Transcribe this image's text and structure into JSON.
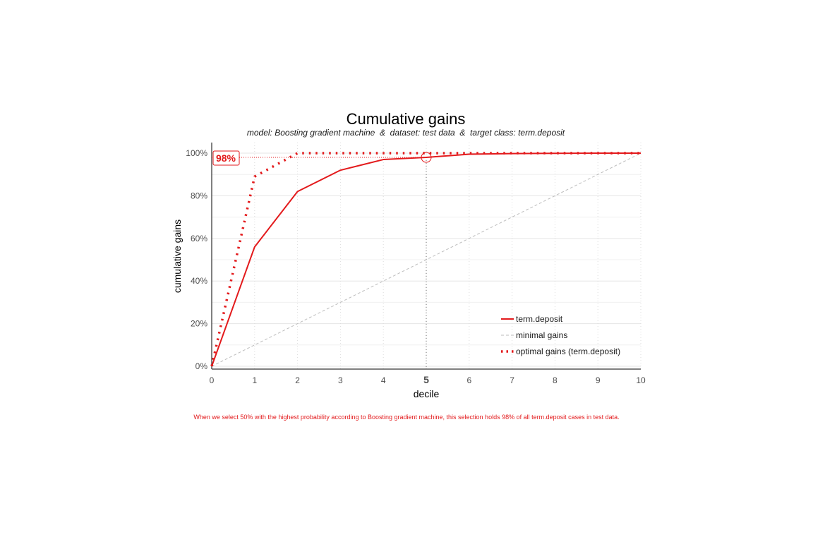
{
  "chart_data": {
    "type": "line",
    "title": "Cumulative gains",
    "subtitle": "model: Boosting gradient machine  &  dataset: test data  &  target class: term.deposit",
    "xlabel": "decile",
    "ylabel": "cumulative gains",
    "xlim": [
      0,
      10
    ],
    "ylim": [
      0,
      1
    ],
    "x_ticks": [
      "0",
      "1",
      "2",
      "3",
      "4",
      "5",
      "6",
      "7",
      "8",
      "9",
      "10"
    ],
    "y_ticks": [
      "0%",
      "20%",
      "40%",
      "60%",
      "80%",
      "100%"
    ],
    "highlight": {
      "decile": 5,
      "gain": 0.98,
      "label": "98%"
    },
    "series": [
      {
        "name": "term.deposit",
        "style": "solid",
        "color": "#e31a1c",
        "x": [
          0,
          1,
          2,
          3,
          4,
          5,
          6,
          7,
          8,
          9,
          10
        ],
        "values": [
          0,
          0.56,
          0.82,
          0.92,
          0.97,
          0.98,
          0.995,
          0.998,
          0.999,
          1.0,
          1.0
        ]
      },
      {
        "name": "minimal gains",
        "style": "dashed",
        "color": "#bdbdbd",
        "x": [
          0,
          10
        ],
        "values": [
          0,
          1
        ]
      },
      {
        "name": "optimal gains (term.deposit)",
        "style": "dotted",
        "color": "#e31a1c",
        "x": [
          0,
          1,
          2,
          3,
          4,
          5,
          6,
          7,
          8,
          9,
          10
        ],
        "values": [
          0,
          0.89,
          1.0,
          1.0,
          1.0,
          1.0,
          1.0,
          1.0,
          1.0,
          1.0,
          1.0
        ]
      }
    ],
    "legend_position": "bottom-right",
    "grid": true,
    "caption": "When we select 50% with the highest probability according to Boosting gradient machine, this selection holds 98% of all term.deposit cases in test data."
  }
}
